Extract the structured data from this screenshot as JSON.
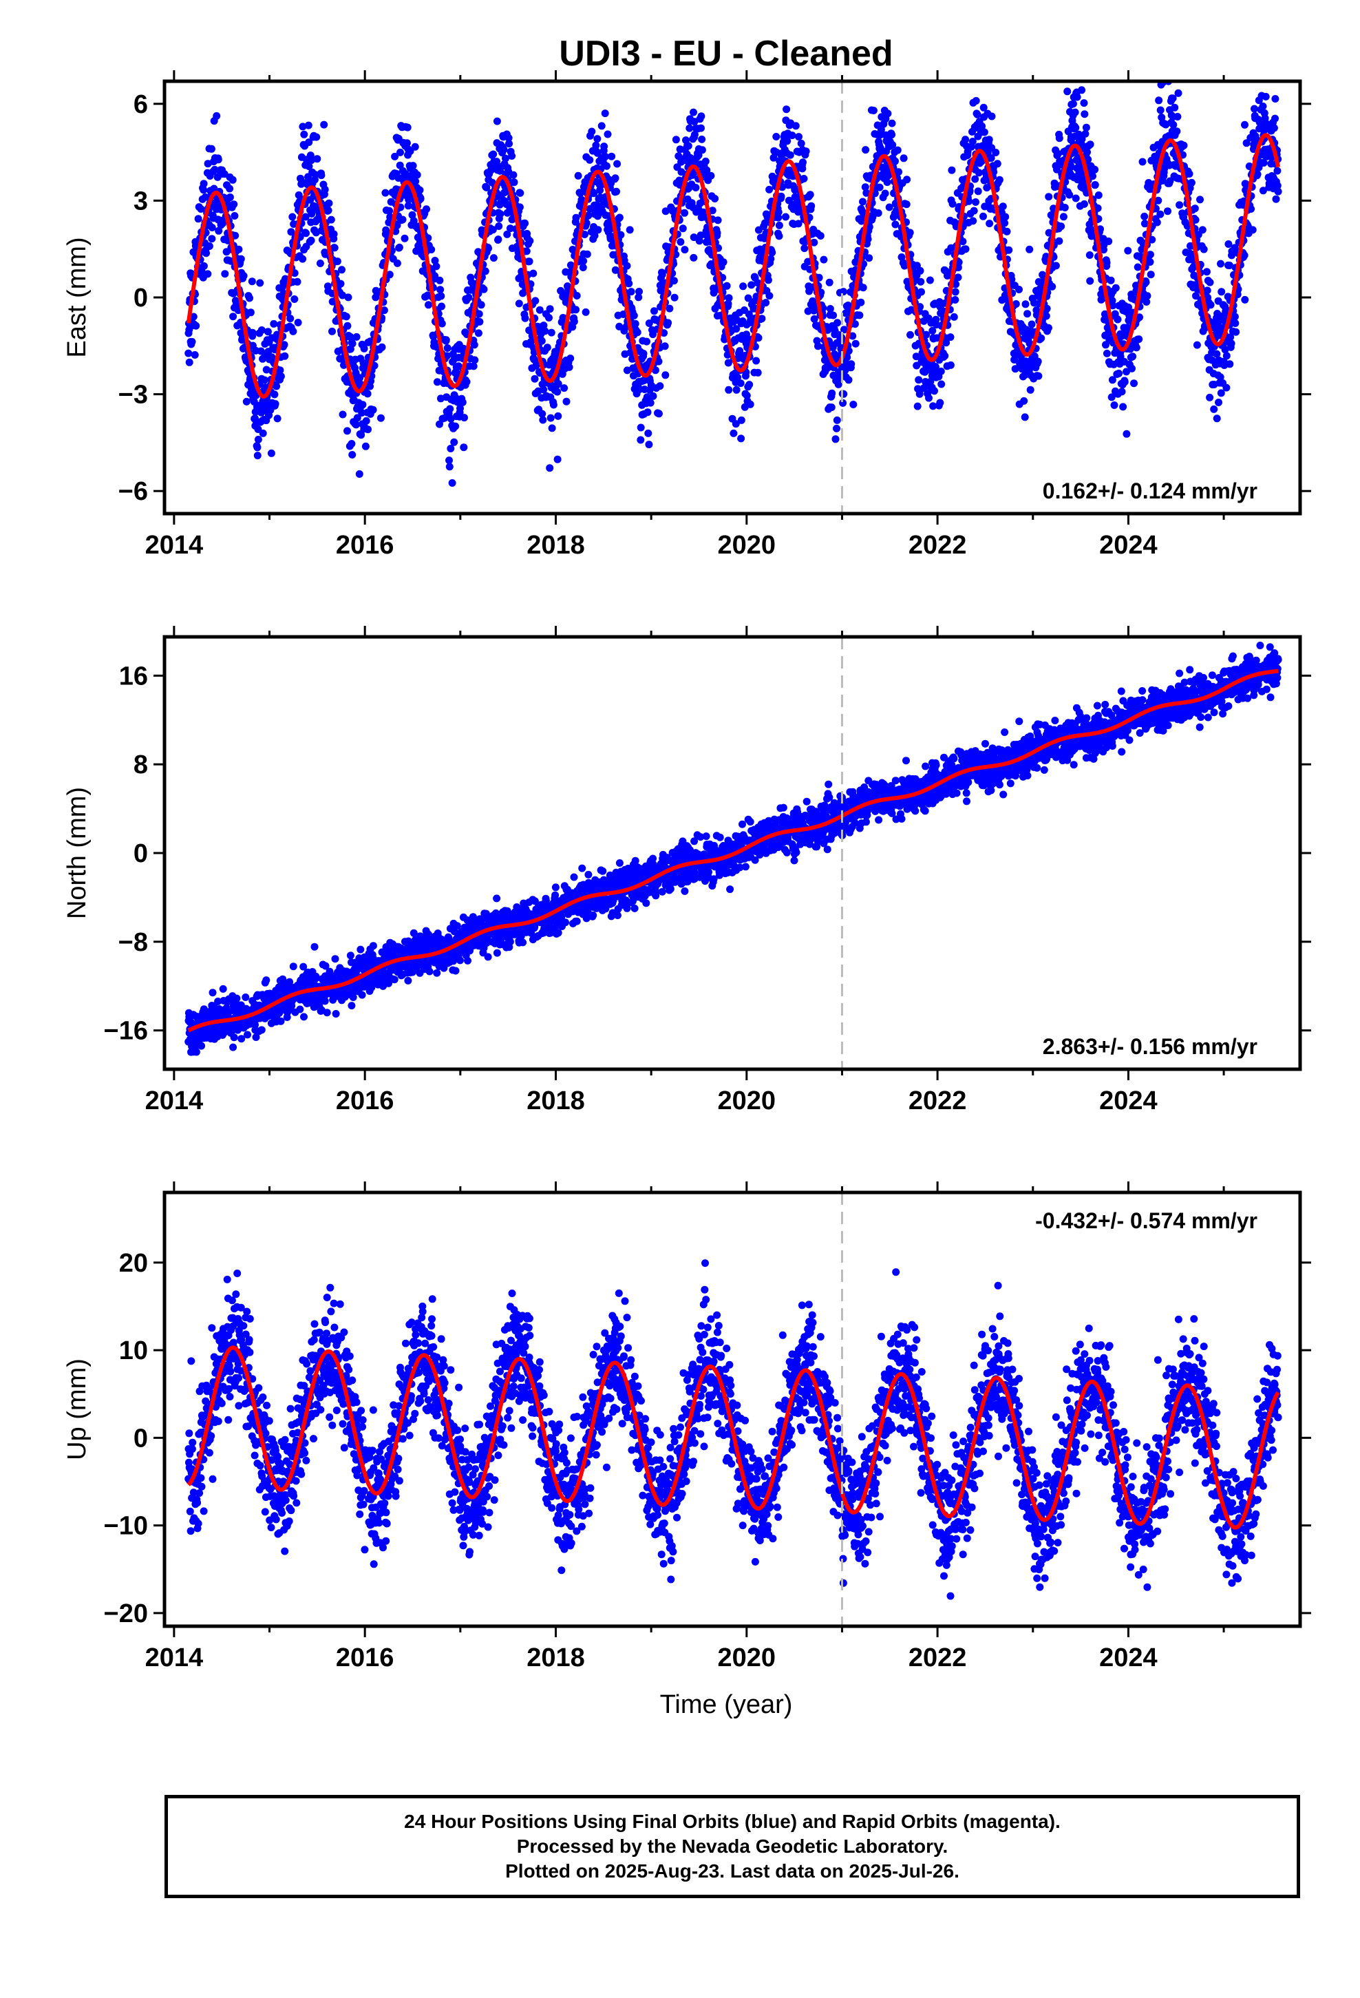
{
  "title": "UDI3  - EU - Cleaned",
  "xlabel": "Time (year)",
  "footer": [
    "24 Hour Positions Using Final Orbits (blue) and Rapid Orbits (magenta).",
    "Processed by the Nevada Geodetic Laboratory.",
    "Plotted on 2025-Aug-23. Last data on 2025-Jul-26."
  ],
  "colors": {
    "points": "#0000ff",
    "model": "#ff0000",
    "marker_line": "#bbbbbb",
    "axes": "#000000"
  },
  "chart_data": [
    {
      "type": "scatter",
      "component": "East",
      "ylabel": "East (mm)",
      "rate_label": "0.162+/- 0.124 mm/yr",
      "rate_position": "bottom-right",
      "xlim": [
        2013.9,
        2025.8
      ],
      "ylim": [
        -6.7,
        6.7
      ],
      "xticks": [
        2014,
        2016,
        2018,
        2020,
        2022,
        2024
      ],
      "yticks": [
        -6,
        -3,
        0,
        3,
        6
      ],
      "marker_line_x": 2021.0,
      "data_start": 2014.15,
      "data_end": 2025.57,
      "model": {
        "offset": 0.0,
        "rate": 0.162,
        "amplitude": 3.2,
        "peak_phase": 0.44,
        "noise_sd": 0.9
      },
      "series": [
        {
          "name": "Final Orbits",
          "style": "points"
        },
        {
          "name": "Model",
          "style": "line"
        }
      ]
    },
    {
      "type": "scatter",
      "component": "North",
      "ylabel": "North (mm)",
      "rate_label": "2.863+/- 0.156 mm/yr",
      "rate_position": "bottom-right",
      "xlim": [
        2013.9,
        2025.8
      ],
      "ylim": [
        -19.5,
        19.5
      ],
      "xticks": [
        2014,
        2016,
        2018,
        2020,
        2022,
        2024
      ],
      "yticks": [
        -16,
        -8,
        0,
        8,
        16
      ],
      "marker_line_x": 2021.0,
      "data_start": 2014.15,
      "data_end": 2025.57,
      "model": {
        "offset": -16.2,
        "rate": 2.863,
        "amplitude": 0.8,
        "peak_phase": 0.0,
        "noise_sd": 0.9
      },
      "series": [
        {
          "name": "Final Orbits",
          "style": "points"
        },
        {
          "name": "Model",
          "style": "line"
        }
      ]
    },
    {
      "type": "scatter",
      "component": "Up",
      "ylabel": "Up (mm)",
      "rate_label": "-0.432+/- 0.574 mm/yr",
      "rate_position": "top-right",
      "xlim": [
        2013.9,
        2025.8
      ],
      "ylim": [
        -21.5,
        28
      ],
      "xticks": [
        2014,
        2016,
        2018,
        2020,
        2022,
        2024
      ],
      "yticks": [
        -20,
        -10,
        0,
        10,
        20
      ],
      "marker_line_x": 2021.0,
      "data_start": 2014.15,
      "data_end": 2025.57,
      "model": {
        "offset": 2.5,
        "rate": -0.432,
        "amplitude": 8.0,
        "peak_phase": 0.62,
        "noise_sd": 3.2
      },
      "series": [
        {
          "name": "Final Orbits",
          "style": "points"
        },
        {
          "name": "Model",
          "style": "line"
        }
      ]
    }
  ]
}
